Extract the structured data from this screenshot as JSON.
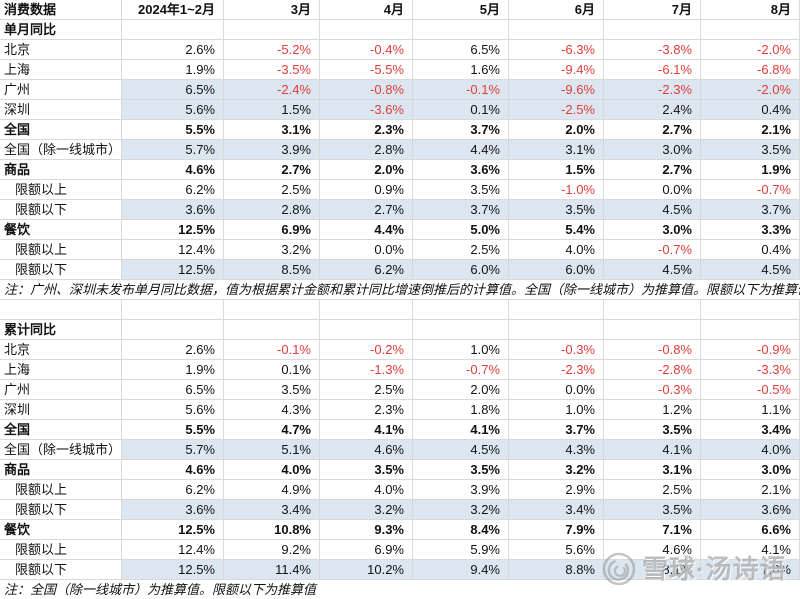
{
  "colors": {
    "highlight_row": "#dce6f1",
    "negative_value": "#e13c39",
    "gridline": "#d9d9d9"
  },
  "chart_data": {
    "type": "table",
    "title": "消费数据",
    "columns": [
      "2024年1~2月",
      "3月",
      "4月",
      "5月",
      "6月",
      "7月",
      "8月"
    ],
    "sections": [
      {
        "title": "单月同比",
        "rows": [
          {
            "label": "北京",
            "bold": false,
            "highlight": false,
            "indent": false,
            "values": [
              "2.6%",
              "-5.2%",
              "-0.4%",
              "6.5%",
              "-6.3%",
              "-3.8%",
              "-2.0%"
            ]
          },
          {
            "label": "上海",
            "bold": false,
            "highlight": false,
            "indent": false,
            "values": [
              "1.9%",
              "-3.5%",
              "-5.5%",
              "1.6%",
              "-9.4%",
              "-6.1%",
              "-6.8%"
            ]
          },
          {
            "label": "广州",
            "bold": false,
            "highlight": true,
            "indent": false,
            "values": [
              "6.5%",
              "-2.4%",
              "-0.8%",
              "-0.1%",
              "-9.6%",
              "-2.3%",
              "-2.0%"
            ]
          },
          {
            "label": "深圳",
            "bold": false,
            "highlight": true,
            "indent": false,
            "values": [
              "5.6%",
              "1.5%",
              "-3.6%",
              "0.1%",
              "-2.5%",
              "2.4%",
              "0.4%"
            ]
          },
          {
            "label": "全国",
            "bold": true,
            "highlight": false,
            "indent": false,
            "values": [
              "5.5%",
              "3.1%",
              "2.3%",
              "3.7%",
              "2.0%",
              "2.7%",
              "2.1%"
            ]
          },
          {
            "label": "全国（除一线城市）",
            "bold": false,
            "highlight": true,
            "indent": false,
            "values": [
              "5.7%",
              "3.9%",
              "2.8%",
              "4.4%",
              "3.1%",
              "3.0%",
              "3.5%"
            ]
          },
          {
            "label": "商品",
            "bold": true,
            "highlight": false,
            "indent": false,
            "values": [
              "4.6%",
              "2.7%",
              "2.0%",
              "3.6%",
              "1.5%",
              "2.7%",
              "1.9%"
            ]
          },
          {
            "label": "限额以上",
            "bold": false,
            "highlight": false,
            "indent": true,
            "values": [
              "6.2%",
              "2.5%",
              "0.9%",
              "3.5%",
              "-1.0%",
              "0.0%",
              "-0.7%"
            ]
          },
          {
            "label": "限额以下",
            "bold": false,
            "highlight": true,
            "indent": true,
            "values": [
              "3.6%",
              "2.8%",
              "2.7%",
              "3.7%",
              "3.5%",
              "4.5%",
              "3.7%"
            ]
          },
          {
            "label": "餐饮",
            "bold": true,
            "highlight": false,
            "indent": false,
            "values": [
              "12.5%",
              "6.9%",
              "4.4%",
              "5.0%",
              "5.4%",
              "3.0%",
              "3.3%"
            ]
          },
          {
            "label": "限额以上",
            "bold": false,
            "highlight": false,
            "indent": true,
            "values": [
              "12.4%",
              "3.2%",
              "0.0%",
              "2.5%",
              "4.0%",
              "-0.7%",
              "0.4%"
            ]
          },
          {
            "label": "限额以下",
            "bold": false,
            "highlight": true,
            "indent": true,
            "values": [
              "12.5%",
              "8.5%",
              "6.2%",
              "6.0%",
              "6.0%",
              "4.5%",
              "4.5%"
            ]
          }
        ],
        "note": "注：广州、深圳未发布单月同比数据，值为根据累计金额和累计同比增速倒推后的计算值。全国（除一线城市）为推算值。限额以下为推算值"
      },
      {
        "title": "累计同比",
        "rows": [
          {
            "label": "北京",
            "bold": false,
            "highlight": false,
            "indent": false,
            "values": [
              "2.6%",
              "-0.1%",
              "-0.2%",
              "1.0%",
              "-0.3%",
              "-0.8%",
              "-0.9%"
            ]
          },
          {
            "label": "上海",
            "bold": false,
            "highlight": false,
            "indent": false,
            "values": [
              "1.9%",
              "0.1%",
              "-1.3%",
              "-0.7%",
              "-2.3%",
              "-2.8%",
              "-3.3%"
            ]
          },
          {
            "label": "广州",
            "bold": false,
            "highlight": false,
            "indent": false,
            "values": [
              "6.5%",
              "3.5%",
              "2.5%",
              "2.0%",
              "0.0%",
              "-0.3%",
              "-0.5%"
            ]
          },
          {
            "label": "深圳",
            "bold": false,
            "highlight": false,
            "indent": false,
            "values": [
              "5.6%",
              "4.3%",
              "2.3%",
              "1.8%",
              "1.0%",
              "1.2%",
              "1.1%"
            ]
          },
          {
            "label": "全国",
            "bold": true,
            "highlight": false,
            "indent": false,
            "values": [
              "5.5%",
              "4.7%",
              "4.1%",
              "4.1%",
              "3.7%",
              "3.5%",
              "3.4%"
            ]
          },
          {
            "label": "全国（除一线城市）",
            "bold": false,
            "highlight": true,
            "indent": false,
            "values": [
              "5.7%",
              "5.1%",
              "4.6%",
              "4.5%",
              "4.3%",
              "4.1%",
              "4.0%"
            ]
          },
          {
            "label": "商品",
            "bold": true,
            "highlight": false,
            "indent": false,
            "values": [
              "4.6%",
              "4.0%",
              "3.5%",
              "3.5%",
              "3.2%",
              "3.1%",
              "3.0%"
            ]
          },
          {
            "label": "限额以上",
            "bold": false,
            "highlight": false,
            "indent": true,
            "values": [
              "6.2%",
              "4.9%",
              "4.0%",
              "3.9%",
              "2.9%",
              "2.5%",
              "2.1%"
            ]
          },
          {
            "label": "限额以下",
            "bold": false,
            "highlight": true,
            "indent": true,
            "values": [
              "3.6%",
              "3.4%",
              "3.2%",
              "3.2%",
              "3.4%",
              "3.5%",
              "3.6%"
            ]
          },
          {
            "label": "餐饮",
            "bold": true,
            "highlight": false,
            "indent": false,
            "values": [
              "12.5%",
              "10.8%",
              "9.3%",
              "8.4%",
              "7.9%",
              "7.1%",
              "6.6%"
            ]
          },
          {
            "label": "限额以上",
            "bold": false,
            "highlight": false,
            "indent": true,
            "values": [
              "12.4%",
              "9.2%",
              "6.9%",
              "5.9%",
              "5.6%",
              "4.6%",
              "4.1%"
            ]
          },
          {
            "label": "限额以下",
            "bold": false,
            "highlight": true,
            "indent": true,
            "values": [
              "12.5%",
              "11.4%",
              "10.2%",
              "9.4%",
              "8.8%",
              "8.1%",
              "7.6%"
            ]
          }
        ],
        "note": "注：全国（除一线城市）为推算值。限额以下为推算值"
      }
    ]
  },
  "watermark": {
    "icon": "xueqiu-snowball-icon",
    "text": "雪球·汤诗语"
  }
}
